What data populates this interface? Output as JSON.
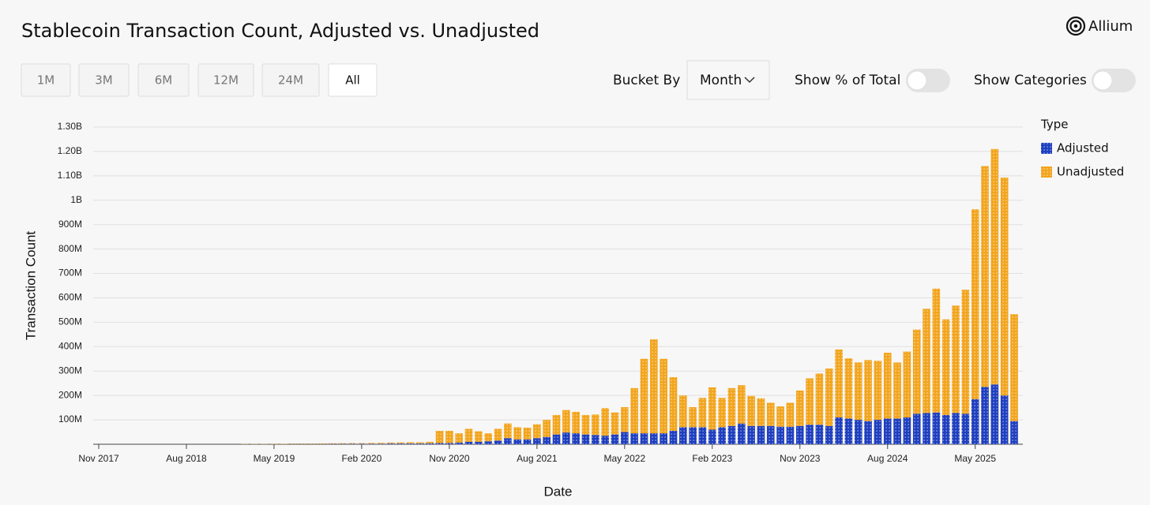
{
  "header": {
    "title": "Stablecoin Transaction Count, Adjusted vs. Unadjusted",
    "brand": "Allium"
  },
  "controls": {
    "ranges": [
      "1M",
      "3M",
      "6M",
      "12M",
      "24M",
      "All"
    ],
    "selected_range": "All",
    "bucket_label": "Bucket By",
    "bucket_value": "Month",
    "toggles": [
      "Show % of Total",
      "Show Categories"
    ]
  },
  "chart_data": {
    "type": "stacked_bar",
    "xlabel": "Date",
    "ylabel": "Transaction Count",
    "legend_title": "Type",
    "legend": "right",
    "grid": true,
    "ylim": [
      0,
      1300
    ],
    "yticks": [
      {
        "value": 100,
        "label": "100M"
      },
      {
        "value": 200,
        "label": "200M"
      },
      {
        "value": 300,
        "label": "300M"
      },
      {
        "value": 400,
        "label": "400M"
      },
      {
        "value": 500,
        "label": "500M"
      },
      {
        "value": 600,
        "label": "600M"
      },
      {
        "value": 700,
        "label": "700M"
      },
      {
        "value": 800,
        "label": "800M"
      },
      {
        "value": 900,
        "label": "900M"
      },
      {
        "value": 1000,
        "label": "1B"
      },
      {
        "value": 1100,
        "label": "1.10B"
      },
      {
        "value": 1200,
        "label": "1.20B"
      },
      {
        "value": 1300,
        "label": "1.30B"
      }
    ],
    "categories": [
      "Nov 2017",
      null,
      null,
      null,
      null,
      null,
      null,
      null,
      null,
      "Aug 2018",
      null,
      null,
      null,
      null,
      null,
      null,
      null,
      null,
      "May 2019",
      null,
      null,
      null,
      null,
      null,
      null,
      null,
      null,
      "Feb 2020",
      null,
      null,
      null,
      null,
      null,
      null,
      null,
      null,
      "Nov 2020",
      null,
      null,
      null,
      null,
      null,
      null,
      null,
      null,
      "Aug 2021",
      null,
      null,
      null,
      null,
      null,
      null,
      null,
      null,
      "May 2022",
      null,
      null,
      null,
      null,
      null,
      null,
      null,
      null,
      "Feb 2023",
      null,
      null,
      null,
      null,
      null,
      null,
      null,
      null,
      "Nov 2023",
      null,
      null,
      null,
      null,
      null,
      null,
      null,
      null,
      "Aug 2024",
      null,
      null,
      null,
      null,
      null,
      null,
      null,
      null,
      "May 2025",
      null,
      null,
      null,
      null
    ],
    "series": [
      {
        "name": "Adjusted",
        "color": "#1f3fbf",
        "values": [
          0,
          0,
          0,
          0,
          0,
          0,
          0,
          0,
          0,
          0,
          0,
          0,
          0,
          0,
          0,
          0,
          0,
          0.5,
          0.5,
          0.5,
          1,
          1,
          1,
          1,
          1.5,
          1.5,
          2,
          2,
          2,
          2,
          3,
          3,
          3,
          3,
          4,
          5,
          5,
          7,
          10,
          10,
          12,
          15,
          25,
          20,
          20,
          25,
          30,
          40,
          48,
          45,
          40,
          38,
          35,
          40,
          50,
          45,
          45,
          45,
          45,
          55,
          70,
          70,
          70,
          60,
          70,
          75,
          85,
          75,
          75,
          75,
          72,
          72,
          75,
          80,
          80,
          75,
          110,
          105,
          100,
          95,
          100,
          105,
          105,
          110,
          125,
          128,
          130,
          120,
          128,
          125,
          185,
          235,
          245,
          200,
          95
        ]
      },
      {
        "name": "Unadjusted",
        "color": "#f2a51e",
        "values": [
          0,
          0,
          0,
          0,
          0,
          0,
          0,
          0,
          0,
          0,
          0,
          0,
          0,
          0,
          0,
          1,
          1,
          1,
          1.5,
          1.5,
          2,
          2,
          2,
          2.5,
          2.5,
          3,
          3,
          3,
          3.5,
          4,
          4,
          4.5,
          5,
          5,
          6,
          50,
          50,
          38,
          53,
          43,
          33,
          48,
          60,
          50,
          48,
          57,
          70,
          80,
          92,
          88,
          80,
          84,
          113,
          90,
          102,
          185,
          305,
          385,
          305,
          220,
          130,
          82,
          120,
          173,
          120,
          155,
          157,
          123,
          113,
          95,
          83,
          98,
          145,
          190,
          210,
          235,
          278,
          247,
          235,
          250,
          242,
          270,
          230,
          270,
          345,
          427,
          508,
          392,
          440,
          508,
          778,
          905,
          965,
          893,
          438
        ]
      }
    ]
  }
}
